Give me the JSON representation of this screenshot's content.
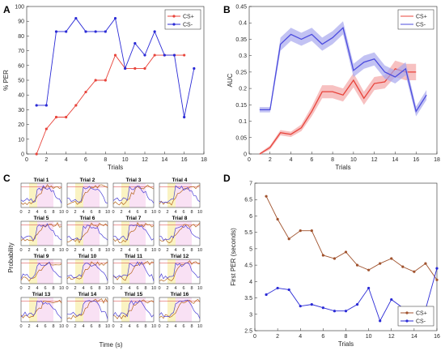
{
  "panel_labels": [
    "A",
    "B",
    "C",
    "D"
  ],
  "chart_data": [
    {
      "panel": "A",
      "type": "line",
      "xlabel": "Trials",
      "ylabel": "% PER",
      "xlim": [
        0,
        18
      ],
      "ylim": [
        0,
        100
      ],
      "xticks": [
        0,
        2,
        4,
        6,
        8,
        10,
        12,
        14,
        16,
        18
      ],
      "yticks": [
        0,
        10,
        20,
        30,
        40,
        50,
        60,
        70,
        80,
        90,
        100
      ],
      "grid": false,
      "legend_position": "top-right",
      "series": [
        {
          "name": "CS+",
          "color": "#e8443b",
          "marker": "circle",
          "x": [
            1,
            2,
            3,
            4,
            5,
            6,
            7,
            8,
            9,
            10,
            11,
            12,
            13,
            14,
            15,
            16
          ],
          "y": [
            0,
            17,
            25,
            25,
            33,
            42,
            50,
            50,
            67,
            58,
            58,
            58,
            67,
            67,
            67,
            67
          ]
        },
        {
          "name": "CS-",
          "color": "#2a2ad6",
          "marker": "circle",
          "x": [
            1,
            2,
            3,
            4,
            5,
            6,
            7,
            8,
            9,
            10,
            11,
            12,
            13,
            14,
            15,
            16,
            17
          ],
          "y": [
            33,
            33,
            83,
            83,
            92,
            83,
            83,
            83,
            92,
            58,
            75,
            67,
            83,
            67,
            67,
            25,
            58
          ]
        }
      ]
    },
    {
      "panel": "B",
      "type": "line",
      "xlabel": "Trials",
      "ylabel": "AUC",
      "xlim": [
        0,
        18
      ],
      "ylim": [
        0,
        0.45
      ],
      "xticks": [
        0,
        2,
        4,
        6,
        8,
        10,
        12,
        14,
        16,
        18
      ],
      "yticks": [
        0,
        0.05,
        0.1,
        0.15,
        0.2,
        0.25,
        0.3,
        0.35,
        0.4,
        0.45
      ],
      "grid": false,
      "legend_position": "top-right",
      "series": [
        {
          "name": "CS+",
          "color": "#e8443b",
          "band_color": "#f4a6a6",
          "x": [
            1,
            2,
            3,
            4,
            5,
            6,
            7,
            8,
            9,
            10,
            11,
            12,
            13,
            14,
            15,
            16
          ],
          "y": [
            0.0,
            0.02,
            0.065,
            0.06,
            0.08,
            0.13,
            0.19,
            0.19,
            0.18,
            0.225,
            0.17,
            0.215,
            0.22,
            0.26,
            0.25,
            0.25
          ],
          "err": [
            0.003,
            0.006,
            0.008,
            0.008,
            0.01,
            0.015,
            0.02,
            0.02,
            0.02,
            0.022,
            0.02,
            0.02,
            0.02,
            0.025,
            0.025,
            0.025
          ]
        },
        {
          "name": "CS-",
          "color": "#4c4cde",
          "band_color": "#a8a8ee",
          "x": [
            1,
            2,
            3,
            4,
            5,
            6,
            7,
            8,
            9,
            10,
            11,
            12,
            13,
            14,
            15,
            16,
            17
          ],
          "y": [
            0.135,
            0.135,
            0.335,
            0.365,
            0.35,
            0.365,
            0.335,
            0.355,
            0.385,
            0.255,
            0.28,
            0.29,
            0.25,
            0.235,
            0.26,
            0.13,
            0.18
          ],
          "err": [
            0.008,
            0.008,
            0.02,
            0.02,
            0.02,
            0.02,
            0.02,
            0.02,
            0.02,
            0.02,
            0.02,
            0.02,
            0.02,
            0.02,
            0.02,
            0.015,
            0.015
          ]
        }
      ]
    },
    {
      "panel": "C",
      "type": "line",
      "xlabel": "Time (s)",
      "ylabel": "Probability",
      "subplot_titles": [
        "Trial 1",
        "Trial 2",
        "Trial 3",
        "Trial 4",
        "Trial 5",
        "Trial 6",
        "Trial 7",
        "Trial 8",
        "Trial 9",
        "Trial 10",
        "Trial 11",
        "Trial 12",
        "Trial 13",
        "Trial 14",
        "Trial 15",
        "Trial 16"
      ],
      "xlim": [
        0,
        10
      ],
      "xticks": [
        0,
        2,
        4,
        6,
        8,
        10
      ],
      "ylim": [
        0,
        1
      ],
      "shaded_intervals": [
        {
          "x": [
            2,
            4
          ],
          "color": "#faf3c2"
        },
        {
          "x": [
            4,
            8
          ],
          "color": "#f9e1f4"
        }
      ],
      "series_colors": {
        "CS+": "#b5651d",
        "CS-": "#4a3fd6",
        "ref": "#d93b3b"
      }
    },
    {
      "panel": "D",
      "type": "line",
      "xlabel": "Trials",
      "ylabel": "First PER (seconds)",
      "xlim": [
        0,
        16
      ],
      "ylim": [
        2.5,
        7
      ],
      "xticks": [
        0,
        2,
        4,
        6,
        8,
        10,
        12,
        14,
        16
      ],
      "yticks": [
        2.5,
        3,
        3.5,
        4,
        4.5,
        5,
        5.5,
        6,
        6.5,
        7
      ],
      "grid": false,
      "legend_position": "bottom-right",
      "series": [
        {
          "name": "CS+",
          "color": "#a0522d",
          "marker": "circle",
          "x": [
            1,
            2,
            3,
            4,
            5,
            6,
            7,
            8,
            9,
            10,
            11,
            12,
            13,
            14,
            15,
            16
          ],
          "y": [
            6.6,
            5.9,
            5.3,
            5.55,
            5.55,
            4.8,
            4.7,
            4.9,
            4.5,
            4.35,
            4.55,
            4.7,
            4.45,
            4.3,
            4.55,
            4.05
          ]
        },
        {
          "name": "CS-",
          "color": "#2a2ad6",
          "marker": "circle",
          "x": [
            1,
            2,
            3,
            4,
            5,
            6,
            7,
            8,
            9,
            10,
            11,
            12,
            13,
            14,
            15,
            16
          ],
          "y": [
            3.6,
            3.8,
            3.75,
            3.25,
            3.3,
            3.2,
            3.1,
            3.1,
            3.3,
            3.8,
            2.8,
            3.45,
            3.2,
            3.1,
            3.15,
            4.4
          ]
        }
      ]
    }
  ]
}
